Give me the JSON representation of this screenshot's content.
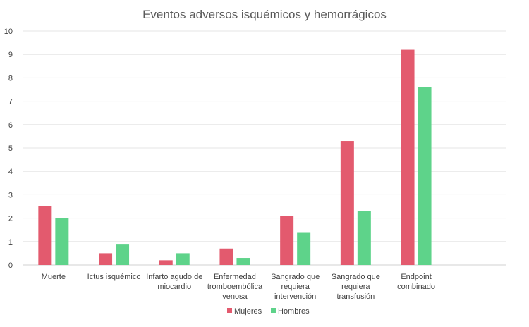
{
  "chart_data": {
    "type": "bar",
    "title": "Eventos adversos isquémicos y hemorrágicos",
    "categories": [
      [
        "Muerte"
      ],
      [
        "Ictus isquémico"
      ],
      [
        "Infarto agudo de",
        "miocardio"
      ],
      [
        "Enfermedad",
        "tromboembólica",
        "venosa"
      ],
      [
        "Sangrado que",
        "requiera",
        "intervención"
      ],
      [
        "Sangrado que",
        "requiera",
        "transfusión"
      ],
      [
        "Endpoint",
        "combinado"
      ]
    ],
    "series": [
      {
        "name": "Mujeres",
        "color": "#e35a6e",
        "values": [
          2.5,
          0.5,
          0.2,
          0.7,
          2.1,
          5.3,
          9.2
        ]
      },
      {
        "name": "Hombres",
        "color": "#5ed38a",
        "values": [
          2.0,
          0.9,
          0.5,
          0.3,
          1.4,
          2.3,
          7.6
        ]
      }
    ],
    "ylim": [
      0,
      10
    ],
    "yticks": [
      "0",
      "1",
      "2",
      "3",
      "4",
      "5",
      "6",
      "7",
      "8",
      "9",
      "10"
    ],
    "grid": true,
    "legend_position": "bottom"
  }
}
